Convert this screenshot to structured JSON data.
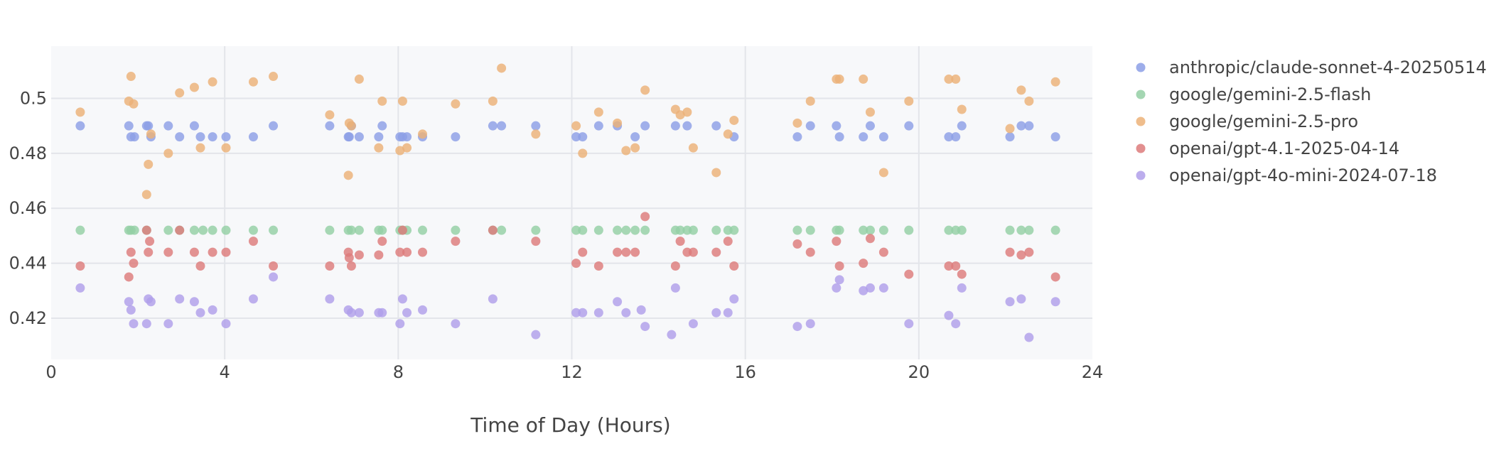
{
  "chart_data": {
    "type": "scatter",
    "title": "",
    "xlabel": "Time of Day (Hours)",
    "ylabel": "",
    "xlim": [
      0,
      24
    ],
    "ylim": [
      0.405,
      0.519
    ],
    "x_ticks": [
      0,
      4,
      8,
      12,
      16,
      20,
      24
    ],
    "x_tick_labels": [
      "0",
      "4",
      "8",
      "12",
      "16",
      "20",
      "24"
    ],
    "y_ticks": [
      0.42,
      0.44,
      0.46,
      0.48,
      0.5
    ],
    "y_tick_labels": [
      "0.42",
      "0.44",
      "0.46",
      "0.48",
      "0.5"
    ],
    "grid": true,
    "legend_position": "right",
    "series": [
      {
        "name": "anthropic/claude-sonnet-4-20250514",
        "color": "#8c9fe6",
        "x": [
          0.67,
          1.79,
          1.84,
          1.92,
          2.2,
          2.24,
          2.3,
          2.7,
          2.96,
          3.3,
          3.44,
          3.72,
          4.03,
          4.66,
          5.12,
          6.42,
          6.85,
          6.87,
          6.92,
          7.1,
          7.55,
          7.63,
          8.04,
          8.1,
          8.2,
          8.56,
          9.32,
          10.18,
          10.38,
          11.17,
          12.1,
          12.25,
          12.62,
          13.05,
          13.46,
          13.69,
          14.39,
          14.66,
          15.33,
          15.74,
          17.2,
          17.5,
          18.1,
          18.17,
          18.72,
          18.88,
          19.19,
          19.77,
          20.69,
          20.85,
          20.99,
          22.1,
          22.36,
          22.54,
          23.15
        ],
        "y": [
          0.49,
          0.49,
          0.486,
          0.486,
          0.49,
          0.49,
          0.486,
          0.49,
          0.486,
          0.49,
          0.486,
          0.486,
          0.486,
          0.486,
          0.49,
          0.49,
          0.486,
          0.486,
          0.49,
          0.486,
          0.486,
          0.49,
          0.486,
          0.486,
          0.486,
          0.486,
          0.486,
          0.49,
          0.49,
          0.49,
          0.486,
          0.486,
          0.49,
          0.49,
          0.486,
          0.49,
          0.49,
          0.49,
          0.49,
          0.486,
          0.486,
          0.49,
          0.49,
          0.486,
          0.486,
          0.49,
          0.486,
          0.49,
          0.486,
          0.486,
          0.49,
          0.486,
          0.49,
          0.49,
          0.486
        ]
      },
      {
        "name": "google/gemini-2.5-flash",
        "color": "#94cfa5",
        "x": [
          0.67,
          1.79,
          1.84,
          1.92,
          2.2,
          2.7,
          2.96,
          3.3,
          3.5,
          3.72,
          4.03,
          4.66,
          5.12,
          6.42,
          6.85,
          6.92,
          7.1,
          7.55,
          7.63,
          8.04,
          8.1,
          8.2,
          8.56,
          9.32,
          10.18,
          10.38,
          11.17,
          12.1,
          12.25,
          12.62,
          13.05,
          13.25,
          13.46,
          13.69,
          14.39,
          14.5,
          14.66,
          14.8,
          15.33,
          15.6,
          15.74,
          17.2,
          17.5,
          18.1,
          18.17,
          18.72,
          18.88,
          19.19,
          19.77,
          20.69,
          20.85,
          20.99,
          22.1,
          22.36,
          22.54,
          23.15
        ],
        "y": [
          0.452,
          0.452,
          0.452,
          0.452,
          0.452,
          0.452,
          0.452,
          0.452,
          0.452,
          0.452,
          0.452,
          0.452,
          0.452,
          0.452,
          0.452,
          0.452,
          0.452,
          0.452,
          0.452,
          0.452,
          0.452,
          0.452,
          0.452,
          0.452,
          0.452,
          0.452,
          0.452,
          0.452,
          0.452,
          0.452,
          0.452,
          0.452,
          0.452,
          0.452,
          0.452,
          0.452,
          0.452,
          0.452,
          0.452,
          0.452,
          0.452,
          0.452,
          0.452,
          0.452,
          0.452,
          0.452,
          0.452,
          0.452,
          0.452,
          0.452,
          0.452,
          0.452,
          0.452,
          0.452,
          0.452,
          0.452
        ]
      },
      {
        "name": "google/gemini-2.5-pro",
        "color": "#ecb178",
        "x": [
          0.67,
          1.79,
          1.84,
          1.9,
          2.2,
          2.24,
          2.3,
          2.7,
          2.96,
          3.3,
          3.44,
          3.72,
          4.03,
          4.66,
          5.12,
          6.42,
          6.85,
          6.87,
          6.92,
          7.1,
          7.55,
          7.63,
          8.04,
          8.1,
          8.2,
          8.56,
          9.32,
          10.18,
          10.38,
          11.17,
          12.1,
          12.25,
          12.62,
          13.05,
          13.25,
          13.46,
          13.69,
          14.39,
          14.5,
          14.66,
          14.8,
          15.33,
          15.6,
          15.74,
          17.2,
          17.5,
          18.1,
          18.17,
          18.72,
          18.88,
          19.19,
          19.77,
          20.69,
          20.85,
          20.99,
          22.1,
          22.36,
          22.54,
          23.15
        ],
        "y": [
          0.495,
          0.499,
          0.508,
          0.498,
          0.465,
          0.476,
          0.487,
          0.48,
          0.502,
          0.504,
          0.482,
          0.506,
          0.482,
          0.506,
          0.508,
          0.494,
          0.472,
          0.491,
          0.49,
          0.507,
          0.482,
          0.499,
          0.481,
          0.499,
          0.482,
          0.487,
          0.498,
          0.499,
          0.511,
          0.487,
          0.49,
          0.48,
          0.495,
          0.491,
          0.481,
          0.482,
          0.503,
          0.496,
          0.494,
          0.495,
          0.482,
          0.473,
          0.487,
          0.492,
          0.491,
          0.499,
          0.507,
          0.507,
          0.507,
          0.495,
          0.473,
          0.499,
          0.507,
          0.507,
          0.496,
          0.489,
          0.503,
          0.499,
          0.506
        ]
      },
      {
        "name": "openai/gpt-4.1-2025-04-14",
        "color": "#dd7b7b",
        "x": [
          0.67,
          1.79,
          1.84,
          1.9,
          2.2,
          2.24,
          2.27,
          2.7,
          2.96,
          3.3,
          3.44,
          3.72,
          4.03,
          4.66,
          5.12,
          6.42,
          6.85,
          6.87,
          6.92,
          7.1,
          7.55,
          7.63,
          8.04,
          8.1,
          8.2,
          8.56,
          9.32,
          10.18,
          11.17,
          12.1,
          12.25,
          12.62,
          13.05,
          13.25,
          13.46,
          13.69,
          14.39,
          14.5,
          14.66,
          14.8,
          15.33,
          15.6,
          15.74,
          17.2,
          17.5,
          18.1,
          18.17,
          18.72,
          18.88,
          19.19,
          19.77,
          20.69,
          20.85,
          20.99,
          22.1,
          22.36,
          22.54,
          23.15
        ],
        "y": [
          0.439,
          0.435,
          0.444,
          0.44,
          0.452,
          0.444,
          0.448,
          0.444,
          0.452,
          0.444,
          0.439,
          0.444,
          0.444,
          0.448,
          0.439,
          0.439,
          0.444,
          0.442,
          0.439,
          0.443,
          0.443,
          0.448,
          0.444,
          0.452,
          0.444,
          0.444,
          0.448,
          0.452,
          0.448,
          0.44,
          0.444,
          0.439,
          0.444,
          0.444,
          0.444,
          0.457,
          0.439,
          0.448,
          0.444,
          0.444,
          0.444,
          0.448,
          0.439,
          0.447,
          0.444,
          0.448,
          0.439,
          0.44,
          0.449,
          0.444,
          0.436,
          0.439,
          0.439,
          0.436,
          0.444,
          0.443,
          0.444,
          0.435
        ]
      },
      {
        "name": "openai/gpt-4o-mini-2024-07-18",
        "color": "#b09fea",
        "x": [
          0.67,
          1.79,
          1.84,
          1.9,
          2.2,
          2.24,
          2.3,
          2.7,
          2.96,
          3.3,
          3.44,
          3.72,
          4.03,
          4.66,
          5.12,
          6.42,
          6.85,
          6.92,
          7.1,
          7.55,
          7.63,
          8.04,
          8.1,
          8.2,
          8.56,
          9.32,
          10.18,
          11.17,
          12.1,
          12.25,
          12.62,
          13.05,
          13.25,
          13.6,
          13.69,
          14.3,
          14.39,
          14.8,
          15.33,
          15.6,
          15.74,
          17.2,
          17.5,
          18.1,
          18.17,
          18.72,
          18.88,
          19.19,
          19.77,
          20.69,
          20.85,
          20.99,
          22.1,
          22.36,
          22.54,
          23.15
        ],
        "y": [
          0.431,
          0.426,
          0.423,
          0.418,
          0.418,
          0.427,
          0.426,
          0.418,
          0.427,
          0.426,
          0.422,
          0.423,
          0.418,
          0.427,
          0.435,
          0.427,
          0.423,
          0.422,
          0.422,
          0.422,
          0.422,
          0.418,
          0.427,
          0.422,
          0.423,
          0.418,
          0.427,
          0.414,
          0.422,
          0.422,
          0.422,
          0.426,
          0.422,
          0.423,
          0.417,
          0.414,
          0.431,
          0.418,
          0.422,
          0.422,
          0.427,
          0.417,
          0.418,
          0.431,
          0.434,
          0.43,
          0.431,
          0.431,
          0.418,
          0.421,
          0.418,
          0.431,
          0.426,
          0.427,
          0.413,
          0.426
        ]
      }
    ]
  }
}
